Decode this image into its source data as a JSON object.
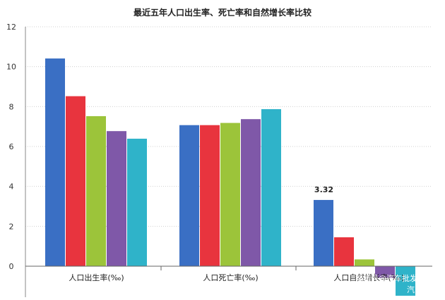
{
  "chart_data": {
    "type": "bar",
    "title": "最近五年人口出生率、死亡率和自然增长率比较",
    "categories": [
      "人口出生率(‰)",
      "人口死亡率(‰)",
      "人口自然增长率(‰)"
    ],
    "series": [
      {
        "color": "#3a6fc4",
        "values": [
          10.41,
          7.07,
          3.32
        ]
      },
      {
        "color": "#e8343e",
        "values": [
          8.52,
          7.07,
          1.45
        ]
      },
      {
        "color": "#9cc43a",
        "values": [
          7.52,
          7.18,
          0.34
        ]
      },
      {
        "color": "#7f58a8",
        "values": [
          6.77,
          7.37,
          -0.6
        ]
      },
      {
        "color": "#2fb3c9",
        "values": [
          6.39,
          7.87,
          -1.48
        ]
      }
    ],
    "data_labels": [
      {
        "series": 0,
        "category": 2,
        "text": "3.32"
      }
    ],
    "ylim": [
      -1.5,
      12
    ],
    "yticks": [
      "0",
      "2",
      "4",
      "6",
      "8",
      "10",
      "12"
    ],
    "grid": true
  },
  "watermark": {
    "line1": "搜狐号@汽车批发",
    "line2": "汽"
  }
}
